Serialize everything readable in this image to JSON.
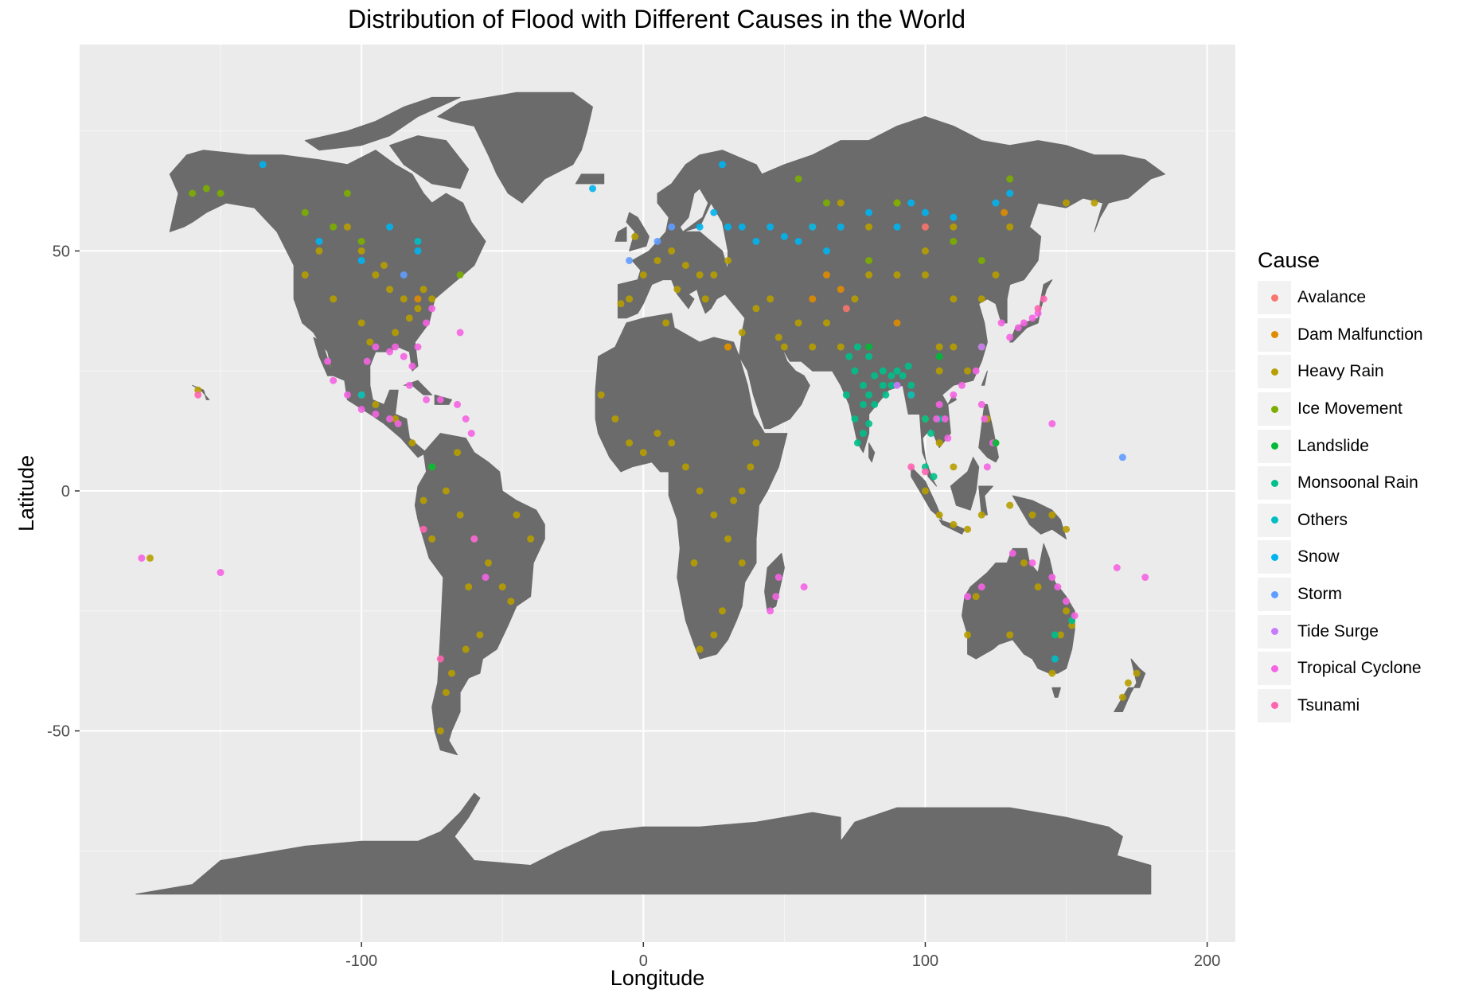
{
  "chart_data": {
    "type": "scatter",
    "title": "Distribution of Flood with Different Causes in the World",
    "xlabel": "Longitude",
    "ylabel": "Latitude",
    "xlim": [
      -200,
      210
    ],
    "ylim": [
      -94,
      93
    ],
    "x_ticks": [
      -100,
      0,
      100,
      200
    ],
    "y_ticks": [
      50,
      0,
      -50
    ],
    "grid": true,
    "legend_position": "right",
    "legend_title": "Cause",
    "categories": [
      {
        "name": "Avalance",
        "color": "#F8766D"
      },
      {
        "name": "Dam Malfunction",
        "color": "#DE8C00"
      },
      {
        "name": "Heavy Rain",
        "color": "#B79F00"
      },
      {
        "name": "Ice Movement",
        "color": "#7CAE00"
      },
      {
        "name": "Landslide",
        "color": "#00BA38"
      },
      {
        "name": "Monsoonal Rain",
        "color": "#00C08B"
      },
      {
        "name": "Others",
        "color": "#00BFC4"
      },
      {
        "name": "Snow",
        "color": "#00B4F0"
      },
      {
        "name": "Storm",
        "color": "#619CFF"
      },
      {
        "name": "Tide Surge",
        "color": "#C77CFF"
      },
      {
        "name": "Tropical Cyclone",
        "color": "#F564E3"
      },
      {
        "name": "Tsunami",
        "color": "#FF64B0"
      }
    ],
    "land_color": "#6b6b6b",
    "panel_color": "#ebebeb",
    "points": [
      {
        "cause": "Heavy Rain",
        "points": [
          [
            -95,
            45
          ],
          [
            -90,
            42
          ],
          [
            -85,
            40
          ],
          [
            -80,
            38
          ],
          [
            -100,
            35
          ],
          [
            -97,
            31
          ],
          [
            -88,
            33
          ],
          [
            -78,
            42
          ],
          [
            -110,
            40
          ],
          [
            -120,
            45
          ],
          [
            -115,
            50
          ],
          [
            -105,
            55
          ],
          [
            -100,
            50
          ],
          [
            -92,
            47
          ],
          [
            -83,
            36
          ],
          [
            -75,
            40
          ],
          [
            -100,
            20
          ],
          [
            -95,
            18
          ],
          [
            -88,
            15
          ],
          [
            -82,
            10
          ],
          [
            -75,
            5
          ],
          [
            -70,
            0
          ],
          [
            -65,
            -5
          ],
          [
            -60,
            -10
          ],
          [
            -55,
            -15
          ],
          [
            -50,
            -20
          ],
          [
            -47,
            -23
          ],
          [
            -58,
            -30
          ],
          [
            -63,
            -33
          ],
          [
            -68,
            -38
          ],
          [
            -70,
            -42
          ],
          [
            -72,
            -50
          ],
          [
            -45,
            -5
          ],
          [
            -40,
            -10
          ],
          [
            -75,
            -10
          ],
          [
            -78,
            -2
          ],
          [
            -66,
            8
          ],
          [
            -62,
            -20
          ],
          [
            -5,
            40
          ],
          [
            0,
            45
          ],
          [
            5,
            48
          ],
          [
            10,
            50
          ],
          [
            15,
            47
          ],
          [
            20,
            45
          ],
          [
            25,
            45
          ],
          [
            30,
            48
          ],
          [
            12,
            42
          ],
          [
            -3,
            53
          ],
          [
            -8,
            39
          ],
          [
            22,
            40
          ],
          [
            -10,
            15
          ],
          [
            -5,
            10
          ],
          [
            0,
            8
          ],
          [
            5,
            12
          ],
          [
            10,
            10
          ],
          [
            15,
            5
          ],
          [
            20,
            0
          ],
          [
            25,
            -5
          ],
          [
            30,
            -10
          ],
          [
            35,
            -15
          ],
          [
            28,
            -25
          ],
          [
            25,
            -30
          ],
          [
            20,
            -33
          ],
          [
            35,
            0
          ],
          [
            38,
            5
          ],
          [
            40,
            10
          ],
          [
            30,
            30
          ],
          [
            32,
            -2
          ],
          [
            18,
            -15
          ],
          [
            -15,
            20
          ],
          [
            8,
            35
          ],
          [
            50,
            30
          ],
          [
            55,
            35
          ],
          [
            60,
            30
          ],
          [
            65,
            35
          ],
          [
            70,
            30
          ],
          [
            75,
            40
          ],
          [
            80,
            45
          ],
          [
            90,
            45
          ],
          [
            100,
            45
          ],
          [
            105,
            30
          ],
          [
            110,
            30
          ],
          [
            115,
            25
          ],
          [
            120,
            30
          ],
          [
            110,
            40
          ],
          [
            120,
            40
          ],
          [
            125,
            45
          ],
          [
            105,
            25
          ],
          [
            100,
            15
          ],
          [
            95,
            20
          ],
          [
            105,
            10
          ],
          [
            110,
            5
          ],
          [
            100,
            0
          ],
          [
            105,
            -5
          ],
          [
            110,
            -7
          ],
          [
            115,
            -8
          ],
          [
            125,
            10
          ],
          [
            122,
            15
          ],
          [
            120,
            -5
          ],
          [
            130,
            -3
          ],
          [
            138,
            -5
          ],
          [
            145,
            -5
          ],
          [
            150,
            -8
          ],
          [
            45,
            40
          ],
          [
            40,
            38
          ],
          [
            35,
            33
          ],
          [
            48,
            32
          ],
          [
            60,
            55
          ],
          [
            80,
            55
          ],
          [
            100,
            50
          ],
          [
            110,
            55
          ],
          [
            130,
            55
          ],
          [
            150,
            60
          ],
          [
            160,
            60
          ],
          [
            70,
            60
          ],
          [
            90,
            60
          ],
          [
            150,
            -25
          ],
          [
            152,
            -28
          ],
          [
            148,
            -30
          ],
          [
            145,
            -38
          ],
          [
            140,
            -20
          ],
          [
            135,
            -15
          ],
          [
            118,
            -22
          ],
          [
            130,
            -30
          ],
          [
            115,
            -30
          ],
          [
            172,
            -40
          ],
          [
            175,
            -38
          ],
          [
            170,
            -43
          ],
          [
            -175,
            -14
          ],
          [
            -158,
            21
          ]
        ]
      },
      {
        "cause": "Monsoonal Rain",
        "points": [
          [
            75,
            25
          ],
          [
            78,
            22
          ],
          [
            80,
            20
          ],
          [
            82,
            18
          ],
          [
            85,
            22
          ],
          [
            88,
            24
          ],
          [
            75,
            15
          ],
          [
            78,
            12
          ],
          [
            72,
            20
          ],
          [
            85,
            25
          ],
          [
            90,
            25
          ],
          [
            76,
            10
          ],
          [
            80,
            14
          ],
          [
            86,
            20
          ],
          [
            92,
            24
          ],
          [
            95,
            22
          ],
          [
            100,
            15
          ],
          [
            102,
            12
          ],
          [
            100,
            5
          ],
          [
            105,
            15
          ],
          [
            80,
            28
          ],
          [
            73,
            28
          ],
          [
            76,
            30
          ],
          [
            103,
            3
          ],
          [
            82,
            24
          ],
          [
            78,
            18
          ],
          [
            88,
            22
          ],
          [
            94,
            26
          ],
          [
            152,
            -27
          ],
          [
            146,
            -30
          ]
        ]
      },
      {
        "cause": "Tropical Cyclone",
        "points": [
          [
            -95,
            30
          ],
          [
            -90,
            29
          ],
          [
            -85,
            28
          ],
          [
            -80,
            30
          ],
          [
            -82,
            26
          ],
          [
            -77,
            35
          ],
          [
            -75,
            38
          ],
          [
            -98,
            27
          ],
          [
            -88,
            30
          ],
          [
            -105,
            20
          ],
          [
            -100,
            17
          ],
          [
            -95,
            16
          ],
          [
            -90,
            15
          ],
          [
            -87,
            14
          ],
          [
            -83,
            22
          ],
          [
            -77,
            19
          ],
          [
            -72,
            19
          ],
          [
            -66,
            18
          ],
          [
            -63,
            15
          ],
          [
            -61,
            12
          ],
          [
            -110,
            23
          ],
          [
            -112,
            27
          ],
          [
            -65,
            33
          ],
          [
            105,
            18
          ],
          [
            107,
            15
          ],
          [
            110,
            20
          ],
          [
            113,
            22
          ],
          [
            118,
            25
          ],
          [
            120,
            18
          ],
          [
            121,
            15
          ],
          [
            124,
            10
          ],
          [
            122,
            5
          ],
          [
            108,
            11
          ],
          [
            104,
            15
          ],
          [
            130,
            32
          ],
          [
            133,
            34
          ],
          [
            135,
            35
          ],
          [
            138,
            36
          ],
          [
            140,
            37
          ],
          [
            127,
            35
          ],
          [
            145,
            14
          ],
          [
            115,
            -22
          ],
          [
            120,
            -20
          ],
          [
            145,
            -18
          ],
          [
            147,
            -20
          ],
          [
            150,
            -23
          ],
          [
            153,
            -26
          ],
          [
            138,
            -15
          ],
          [
            131,
            -13
          ],
          [
            48,
            -18
          ],
          [
            47,
            -22
          ],
          [
            45,
            -25
          ],
          [
            57,
            -20
          ],
          [
            -150,
            -17
          ],
          [
            -178,
            -14
          ],
          [
            178,
            -18
          ],
          [
            168,
            -16
          ],
          [
            -60,
            -10
          ],
          [
            -56,
            -18
          ]
        ]
      },
      {
        "cause": "Snow",
        "points": [
          [
            20,
            55
          ],
          [
            25,
            58
          ],
          [
            30,
            55
          ],
          [
            35,
            55
          ],
          [
            40,
            52
          ],
          [
            45,
            55
          ],
          [
            50,
            53
          ],
          [
            55,
            52
          ],
          [
            60,
            55
          ],
          [
            65,
            50
          ],
          [
            70,
            55
          ],
          [
            80,
            58
          ],
          [
            90,
            55
          ],
          [
            95,
            60
          ],
          [
            100,
            58
          ],
          [
            110,
            57
          ],
          [
            125,
            60
          ],
          [
            130,
            62
          ],
          [
            -90,
            55
          ],
          [
            -80,
            50
          ],
          [
            -100,
            48
          ],
          [
            -135,
            68
          ],
          [
            -115,
            52
          ],
          [
            28,
            68
          ],
          [
            -18,
            63
          ]
        ]
      },
      {
        "cause": "Ice Movement",
        "points": [
          [
            -160,
            62
          ],
          [
            -155,
            63
          ],
          [
            -150,
            62
          ],
          [
            -120,
            58
          ],
          [
            -110,
            55
          ],
          [
            -100,
            52
          ],
          [
            -105,
            62
          ],
          [
            55,
            65
          ],
          [
            65,
            60
          ],
          [
            90,
            60
          ],
          [
            130,
            65
          ],
          [
            120,
            48
          ],
          [
            110,
            52
          ],
          [
            80,
            48
          ],
          [
            -65,
            45
          ]
        ]
      },
      {
        "cause": "Dam Malfunction",
        "points": [
          [
            65,
            45
          ],
          [
            70,
            42
          ],
          [
            60,
            40
          ],
          [
            30,
            30
          ],
          [
            -80,
            40
          ],
          [
            128,
            58
          ],
          [
            90,
            35
          ]
        ]
      },
      {
        "cause": "Storm",
        "points": [
          [
            5,
            52
          ],
          [
            10,
            55
          ],
          [
            -5,
            48
          ],
          [
            170,
            7
          ],
          [
            -85,
            45
          ]
        ]
      },
      {
        "cause": "Tsunami",
        "points": [
          [
            140,
            38
          ],
          [
            142,
            40
          ],
          [
            100,
            4
          ],
          [
            95,
            5
          ],
          [
            -72,
            -35
          ],
          [
            -78,
            -8
          ],
          [
            -158,
            20
          ]
        ]
      },
      {
        "cause": "Others",
        "points": [
          [
            -80,
            52
          ],
          [
            95,
            20
          ],
          [
            146,
            -35
          ],
          [
            -100,
            20
          ]
        ]
      },
      {
        "cause": "Landslide",
        "points": [
          [
            80,
            30
          ],
          [
            105,
            28
          ],
          [
            125,
            10
          ],
          [
            -75,
            5
          ]
        ]
      },
      {
        "cause": "Tide Surge",
        "points": [
          [
            90,
            22
          ],
          [
            120,
            30
          ]
        ]
      },
      {
        "cause": "Avalance",
        "points": [
          [
            72,
            38
          ],
          [
            100,
            55
          ]
        ]
      }
    ]
  }
}
